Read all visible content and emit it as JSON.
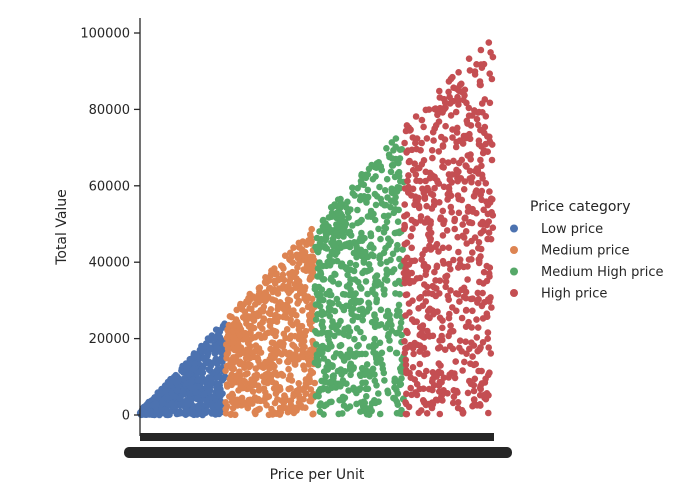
{
  "chart_data": {
    "type": "scatter",
    "title": "",
    "xlabel": "Price per Unit",
    "ylabel": "Total Value",
    "y_ticks": [
      "0",
      "20000",
      "40000",
      "60000",
      "80000",
      "100000"
    ],
    "ylim": [
      -5000,
      105000
    ],
    "grid": false,
    "legend": {
      "title": "Price category",
      "position": "right"
    },
    "x_tick_labels_overlapping": true,
    "series": [
      {
        "name": "Low price",
        "color": "#4c72b0",
        "x_range": [
          1,
          25
        ],
        "y_max": [
          10000,
          25000
        ]
      },
      {
        "name": "Medium price",
        "color": "#dd8452",
        "x_range": [
          25,
          50
        ],
        "y_max": [
          25000,
          50000
        ]
      },
      {
        "name": "Medium High price",
        "color": "#55a868",
        "x_range": [
          50,
          75
        ],
        "y_max": [
          50000,
          75000
        ]
      },
      {
        "name": "High price",
        "color": "#c44e52",
        "x_range": [
          75,
          100
        ],
        "y_max": [
          75000,
          100000
        ]
      }
    ]
  }
}
